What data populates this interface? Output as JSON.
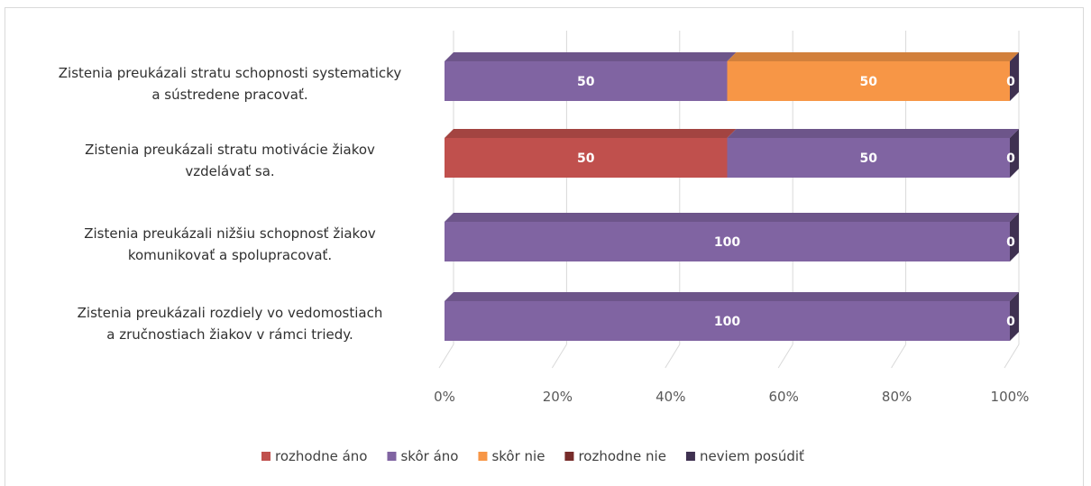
{
  "chart_data": {
    "type": "bar",
    "orientation": "horizontal",
    "stacked": "percent",
    "style": "3d",
    "categories": [
      [
        "Zistenia preukázali stratu schopnosti systematicky",
        "a sústredene pracovať."
      ],
      [
        "Zistenia  preukázali stratu motivácie žiakov",
        "vzdelávať sa."
      ],
      [
        "Zistenia preukázali nižšiu schopnosť žiakov",
        "komunikovať a spolupracovať."
      ],
      [
        "Zistenia  preukázali rozdiely vo vedomostiach",
        "a zručnostiach žiakov v rámci triedy."
      ]
    ],
    "series": [
      {
        "name": "rozhodne áno",
        "color": "#c0504d",
        "values": [
          0,
          50,
          0,
          0
        ],
        "labels": [
          "",
          "50",
          "",
          ""
        ]
      },
      {
        "name": "skôr áno",
        "color": "#8064a2",
        "values": [
          50,
          50,
          100,
          100
        ],
        "labels": [
          "50",
          "50",
          "100",
          "100"
        ]
      },
      {
        "name": "skôr nie",
        "color": "#f79646",
        "values": [
          50,
          0,
          0,
          0
        ],
        "labels": [
          "50",
          "",
          "",
          ""
        ]
      },
      {
        "name": "rozhodne nie",
        "color": "#772c2a",
        "values": [
          0,
          0,
          0,
          0
        ],
        "labels": [
          "",
          "",
          "",
          ""
        ]
      },
      {
        "name": "neviem posúdiť",
        "color": "#3f3151",
        "values": [
          0,
          0,
          0,
          0
        ],
        "labels": [
          "0",
          "0",
          "0",
          "0"
        ]
      }
    ],
    "x_ticks": [
      "0%",
      "20%",
      "40%",
      "60%",
      "80%",
      "100%"
    ],
    "xlim": [
      0,
      100
    ],
    "gridlines": true,
    "legend_position": "bottom",
    "title": "",
    "xlabel": "",
    "ylabel": ""
  }
}
